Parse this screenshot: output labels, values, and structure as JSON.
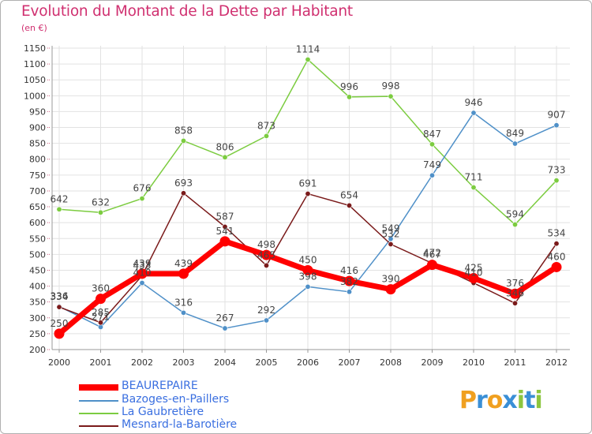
{
  "title": "Evolution du Montant de la Dette par Habitant",
  "subtitle": "(en €)",
  "logo": {
    "text": "Proxiti",
    "letters": [
      {
        "ch": "P",
        "color": "#f0a020"
      },
      {
        "ch": "r",
        "color": "#3a8fd6"
      },
      {
        "ch": "o",
        "color": "#f0a020"
      },
      {
        "ch": "x",
        "color": "#3a8fd6"
      },
      {
        "ch": "i",
        "color": "#8cc63f"
      },
      {
        "ch": "t",
        "color": "#3a8fd6"
      },
      {
        "ch": "i",
        "color": "#8cc63f"
      }
    ]
  },
  "chart_data": {
    "type": "line",
    "x": [
      "2000",
      "2001",
      "2002",
      "2003",
      "2004",
      "2005",
      "2006",
      "2007",
      "2008",
      "2009",
      "2010",
      "2011",
      "2012"
    ],
    "ylim": [
      200,
      1150
    ],
    "yticks": [
      "200",
      "250",
      "300",
      "350",
      "400",
      "450",
      "500",
      "550",
      "600",
      "650",
      "700",
      "750",
      "800",
      "850",
      "900",
      "950",
      "1000",
      "1050",
      "1100",
      "1150"
    ],
    "grid": true,
    "legend_position": "bottom-left",
    "series": [
      {
        "name": "BEAUREPAIRE",
        "color": "#ff0000",
        "legend_color": "#3a6fe0",
        "thick": true,
        "values": [
          250,
          360,
          439,
          439,
          541,
          498,
          450,
          416,
          390,
          467,
          425,
          376,
          460
        ],
        "labels": [
          "250",
          "360",
          "439",
          "439",
          "541",
          "498",
          "450",
          "416",
          "390",
          "467",
          "425",
          "376",
          "460"
        ]
      },
      {
        "name": "Bazoges-en-Pailler s",
        "display_name": "Bazoges-en-Paillers",
        "color": "#4f90c8",
        "legend_color": "#3a6fe0",
        "thick": false,
        "values": [
          336,
          271,
          410,
          316,
          267,
          292,
          398,
          382,
          549,
          749,
          946,
          849,
          907
        ],
        "labels": [
          "336",
          "271",
          "410",
          "316",
          "267",
          "292",
          "398",
          "382",
          "549",
          "749",
          "946",
          "849",
          "907"
        ]
      },
      {
        "name": "La Gaubretière",
        "color": "#7ccc40",
        "legend_color": "#3a6fe0",
        "thick": false,
        "values": [
          642,
          632,
          676,
          858,
          806,
          873,
          1114,
          996,
          998,
          847,
          711,
          594,
          733
        ],
        "labels": [
          "642",
          "632",
          "676",
          "858",
          "806",
          "873",
          "1114",
          "996",
          "998",
          "847",
          "711",
          "594",
          "733"
        ]
      },
      {
        "name": "Mesnard-la-Barotière",
        "color": "#7a1a1a",
        "legend_color": "#3a6fe0",
        "thick": false,
        "values": [
          334,
          285,
          433,
          693,
          587,
          465,
          691,
          654,
          532,
          472,
          410,
          346,
          534
        ],
        "labels": [
          "334",
          "285",
          "433",
          "693",
          "587",
          "465",
          "691",
          "654",
          "532",
          "472",
          "410",
          "346",
          "534"
        ]
      }
    ]
  }
}
